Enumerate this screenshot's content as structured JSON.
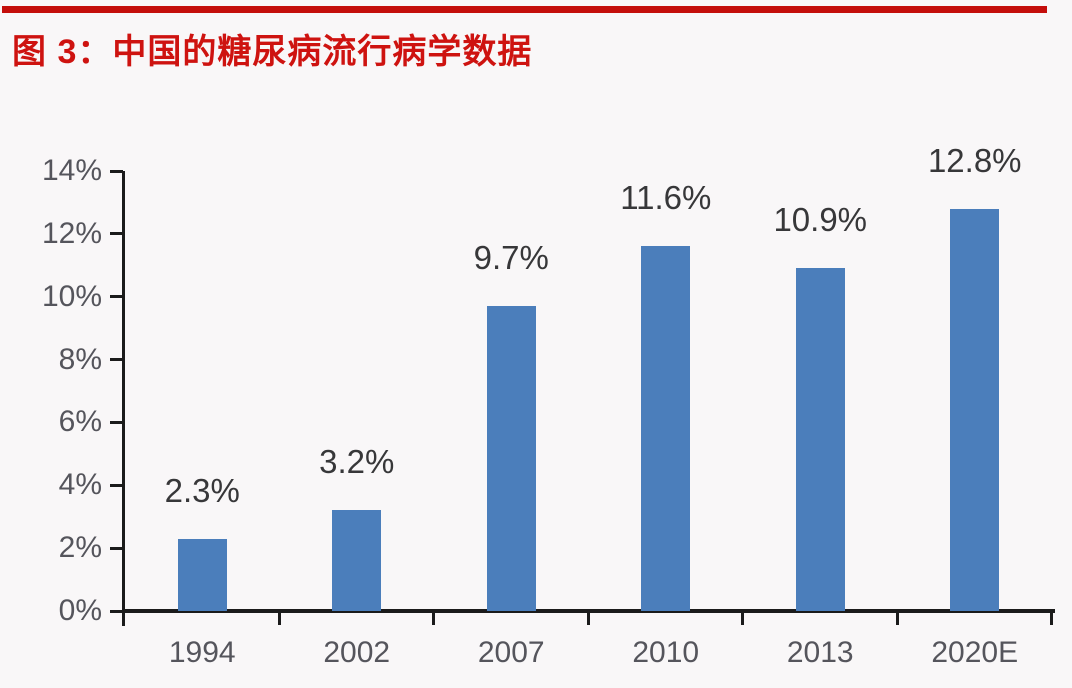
{
  "figure": {
    "title": "图 3：中国的糖尿病流行病学数据",
    "title_color": "#CE1310",
    "rule_color": "#C40E0B",
    "background_color": "#F9F7F8"
  },
  "chart_data": {
    "type": "bar",
    "title": "图 3：中国的糖尿病流行病学数据",
    "categories": [
      "1994",
      "2002",
      "2007",
      "2010",
      "2013",
      "2020E"
    ],
    "values": [
      2.3,
      3.2,
      9.7,
      11.6,
      10.9,
      12.8
    ],
    "value_labels": [
      "2.3%",
      "3.2%",
      "9.7%",
      "11.6%",
      "10.9%",
      "12.8%"
    ],
    "xlabel": "",
    "ylabel": "",
    "ylim": [
      0,
      14
    ],
    "ytick_step": 2,
    "ytick_labels": [
      "0%",
      "2%",
      "4%",
      "6%",
      "8%",
      "10%",
      "12%",
      "14%"
    ],
    "grid": false,
    "legend": "none",
    "bar_color": "#4B7EBB",
    "axis_color": "#1B1B1B",
    "value_label_color": "#373739",
    "tick_label_color": "#55555C"
  }
}
